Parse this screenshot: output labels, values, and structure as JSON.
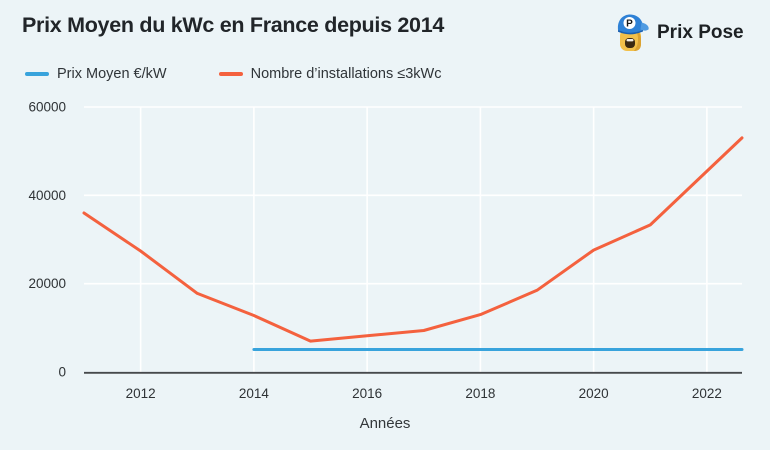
{
  "header": {
    "title": "Prix Moyen du kWc en France depuis 2014",
    "brand": "Prix Pose"
  },
  "chart_data": {
    "type": "line",
    "title": "Prix Moyen du kWc en France depuis 2014",
    "xlabel": "Années",
    "ylabel": "",
    "xlim": [
      2011,
      2022.62
    ],
    "ylim": [
      0,
      60000
    ],
    "x_ticks": [
      2012,
      2014,
      2016,
      2018,
      2020,
      2022
    ],
    "x_tick_labels": [
      "2012",
      "2014",
      "2016",
      "2018",
      "2020",
      "2022"
    ],
    "y_ticks": [
      0,
      20000,
      40000,
      60000
    ],
    "y_tick_labels": [
      "0",
      "20000",
      "40000",
      "60000"
    ],
    "grid": true,
    "legend_position": "top-left",
    "background": "#ecf4f7",
    "gridline_color": "#ffffff",
    "axis_line_color": "#46494c",
    "tick_color": "#2e3235",
    "series": [
      {
        "name": "Prix Moyen €/kW",
        "color": "#38a3dc",
        "x": [
          2014,
          2022.62
        ],
        "values": [
          5100,
          5100
        ]
      },
      {
        "name": "Nombre d’installations ≤3kWc",
        "color": "#f4613e",
        "x": [
          2011,
          2012,
          2013,
          2014,
          2015,
          2016,
          2017,
          2018,
          2019,
          2020,
          2021,
          2022.62
        ],
        "values": [
          36000,
          27400,
          17800,
          12800,
          7000,
          8200,
          9400,
          13000,
          18500,
          27600,
          33300,
          53000
        ]
      }
    ]
  }
}
